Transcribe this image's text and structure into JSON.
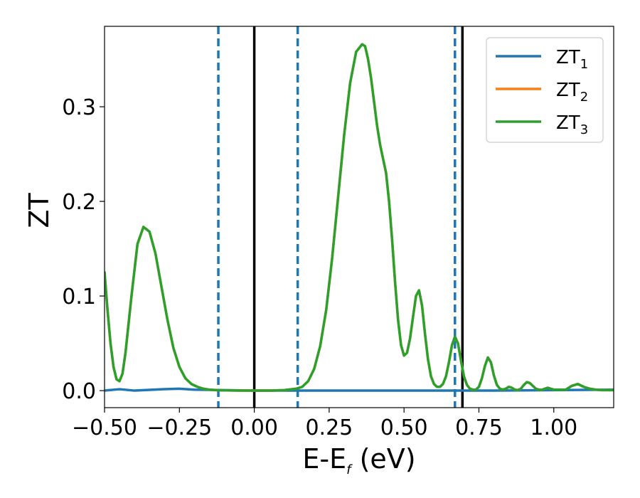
{
  "chart_data": {
    "type": "line",
    "xlabel": "E-E",
    "xlabel_sub": "f",
    "xlabel_unit": " (eV)",
    "ylabel": "ZT",
    "xlim": [
      -0.5,
      1.2
    ],
    "ylim": [
      -0.018,
      0.385
    ],
    "x_ticks": [
      -0.5,
      -0.25,
      0.0,
      0.25,
      0.5,
      0.75,
      1.0
    ],
    "x_tick_labels": [
      "−0.50",
      "−0.25",
      "0.00",
      "0.25",
      "0.50",
      "0.75",
      "1.00"
    ],
    "y_ticks": [
      0.0,
      0.1,
      0.2,
      0.3
    ],
    "y_tick_labels": [
      "0.0",
      "0.1",
      "0.2",
      "0.3"
    ],
    "grid": false,
    "legend_position": "top-right",
    "series": [
      {
        "name": "ZT",
        "name_sub": "1",
        "color": "#1f77b4",
        "x": [
          -0.5,
          -0.45,
          -0.4,
          -0.35,
          -0.3,
          -0.25,
          -0.2,
          -0.15,
          -0.1,
          0.0,
          0.2,
          0.4,
          0.6,
          0.8,
          1.0,
          1.2
        ],
        "y": [
          0.0,
          0.0015,
          0.0,
          0.0008,
          0.0015,
          0.002,
          0.001,
          0.0008,
          0.0005,
          0.0,
          0.0,
          0.0,
          0.0,
          0.0,
          0.0005,
          0.001
        ]
      },
      {
        "name": "ZT",
        "name_sub": "2",
        "color": "#ff7f0e",
        "x": [
          -0.5,
          -0.49,
          -0.48,
          -0.47,
          -0.46,
          -0.45,
          -0.44,
          -0.43,
          -0.41,
          -0.39,
          -0.37,
          -0.35,
          -0.33,
          -0.31,
          -0.29,
          -0.27,
          -0.25,
          -0.23,
          -0.21,
          -0.19,
          -0.17,
          -0.15,
          -0.13,
          -0.11,
          -0.09,
          -0.07,
          -0.05,
          -0.03,
          0.0,
          0.05,
          0.1,
          0.14,
          0.16,
          0.18,
          0.2,
          0.22,
          0.24,
          0.26,
          0.28,
          0.3,
          0.32,
          0.34,
          0.36,
          0.37,
          0.38,
          0.39,
          0.4,
          0.41,
          0.42,
          0.43,
          0.44,
          0.45,
          0.46,
          0.47,
          0.48,
          0.49,
          0.5,
          0.51,
          0.52,
          0.53,
          0.54,
          0.55,
          0.56,
          0.57,
          0.58,
          0.59,
          0.6,
          0.61,
          0.62,
          0.63,
          0.64,
          0.65,
          0.66,
          0.67,
          0.68,
          0.69,
          0.7,
          0.71,
          0.72,
          0.73,
          0.74,
          0.75,
          0.76,
          0.77,
          0.78,
          0.79,
          0.8,
          0.81,
          0.82,
          0.83,
          0.84,
          0.85,
          0.86,
          0.87,
          0.88,
          0.89,
          0.9,
          0.91,
          0.92,
          0.93,
          0.94,
          0.95,
          0.96,
          0.97,
          0.98,
          0.99,
          1.0,
          1.02,
          1.04,
          1.06,
          1.08,
          1.1,
          1.12,
          1.14,
          1.16,
          1.18,
          1.2
        ],
        "y": [
          0.125,
          0.085,
          0.05,
          0.025,
          0.012,
          0.01,
          0.018,
          0.04,
          0.1,
          0.155,
          0.173,
          0.168,
          0.145,
          0.11,
          0.075,
          0.045,
          0.025,
          0.013,
          0.007,
          0.004,
          0.002,
          0.001,
          0.0005,
          0.0003,
          0.0002,
          0.0001,
          0.0,
          0.0,
          0.0,
          0.0,
          0.0005,
          0.002,
          0.004,
          0.01,
          0.023,
          0.047,
          0.085,
          0.14,
          0.205,
          0.27,
          0.325,
          0.358,
          0.366,
          0.364,
          0.35,
          0.33,
          0.305,
          0.28,
          0.26,
          0.245,
          0.23,
          0.2,
          0.16,
          0.115,
          0.075,
          0.048,
          0.037,
          0.04,
          0.055,
          0.078,
          0.1,
          0.106,
          0.09,
          0.06,
          0.033,
          0.015,
          0.007,
          0.004,
          0.004,
          0.007,
          0.015,
          0.03,
          0.048,
          0.057,
          0.05,
          0.032,
          0.015,
          0.006,
          0.002,
          0.001,
          0.001,
          0.004,
          0.013,
          0.026,
          0.035,
          0.03,
          0.016,
          0.006,
          0.002,
          0.001,
          0.002,
          0.004,
          0.003,
          0.001,
          0.0005,
          0.002,
          0.006,
          0.009,
          0.008,
          0.005,
          0.002,
          0.001,
          0.0008,
          0.002,
          0.003,
          0.002,
          0.001,
          0.001,
          0.001,
          0.005,
          0.007,
          0.004,
          0.002,
          0.001,
          0.0005,
          0.0005,
          0.0005
        ]
      },
      {
        "name": "ZT",
        "name_sub": "3",
        "color": "#2ca02c",
        "x": [
          -0.5,
          -0.49,
          -0.48,
          -0.47,
          -0.46,
          -0.45,
          -0.44,
          -0.43,
          -0.41,
          -0.39,
          -0.37,
          -0.35,
          -0.33,
          -0.31,
          -0.29,
          -0.27,
          -0.25,
          -0.23,
          -0.21,
          -0.19,
          -0.17,
          -0.15,
          -0.13,
          -0.11,
          -0.09,
          -0.07,
          -0.05,
          -0.03,
          0.0,
          0.05,
          0.1,
          0.14,
          0.16,
          0.18,
          0.2,
          0.22,
          0.24,
          0.26,
          0.28,
          0.3,
          0.32,
          0.34,
          0.36,
          0.37,
          0.38,
          0.39,
          0.4,
          0.41,
          0.42,
          0.43,
          0.44,
          0.45,
          0.46,
          0.47,
          0.48,
          0.49,
          0.5,
          0.51,
          0.52,
          0.53,
          0.54,
          0.55,
          0.56,
          0.57,
          0.58,
          0.59,
          0.6,
          0.61,
          0.62,
          0.63,
          0.64,
          0.65,
          0.66,
          0.67,
          0.68,
          0.69,
          0.7,
          0.71,
          0.72,
          0.73,
          0.74,
          0.75,
          0.76,
          0.77,
          0.78,
          0.79,
          0.8,
          0.81,
          0.82,
          0.83,
          0.84,
          0.85,
          0.86,
          0.87,
          0.88,
          0.89,
          0.9,
          0.91,
          0.92,
          0.93,
          0.94,
          0.95,
          0.96,
          0.97,
          0.98,
          0.99,
          1.0,
          1.02,
          1.04,
          1.06,
          1.08,
          1.1,
          1.12,
          1.14,
          1.16,
          1.18,
          1.2
        ],
        "y": [
          0.125,
          0.085,
          0.05,
          0.025,
          0.012,
          0.01,
          0.018,
          0.04,
          0.1,
          0.155,
          0.173,
          0.168,
          0.145,
          0.11,
          0.075,
          0.045,
          0.025,
          0.013,
          0.007,
          0.004,
          0.002,
          0.001,
          0.0005,
          0.0003,
          0.0002,
          0.0001,
          0.0,
          0.0,
          0.0,
          0.0,
          0.0005,
          0.002,
          0.004,
          0.01,
          0.023,
          0.047,
          0.085,
          0.14,
          0.205,
          0.27,
          0.325,
          0.358,
          0.366,
          0.364,
          0.35,
          0.33,
          0.305,
          0.28,
          0.26,
          0.245,
          0.23,
          0.2,
          0.16,
          0.115,
          0.075,
          0.048,
          0.037,
          0.04,
          0.055,
          0.078,
          0.1,
          0.106,
          0.09,
          0.06,
          0.033,
          0.015,
          0.007,
          0.004,
          0.004,
          0.007,
          0.015,
          0.03,
          0.048,
          0.057,
          0.05,
          0.032,
          0.015,
          0.006,
          0.002,
          0.001,
          0.001,
          0.004,
          0.013,
          0.026,
          0.035,
          0.03,
          0.016,
          0.006,
          0.002,
          0.001,
          0.002,
          0.004,
          0.003,
          0.001,
          0.0005,
          0.002,
          0.006,
          0.009,
          0.008,
          0.005,
          0.002,
          0.001,
          0.0008,
          0.002,
          0.003,
          0.002,
          0.001,
          0.001,
          0.001,
          0.005,
          0.007,
          0.004,
          0.002,
          0.001,
          0.0005,
          0.0005,
          0.0005
        ]
      }
    ],
    "vertical_lines": [
      {
        "x": -0.12,
        "style": "dashed",
        "color": "#1f77b4"
      },
      {
        "x": 0.0,
        "style": "solid",
        "color": "#000000"
      },
      {
        "x": 0.145,
        "style": "dashed",
        "color": "#1f77b4"
      },
      {
        "x": 0.67,
        "style": "dashed",
        "color": "#1f77b4"
      },
      {
        "x": 0.695,
        "style": "solid",
        "color": "#000000"
      }
    ]
  }
}
